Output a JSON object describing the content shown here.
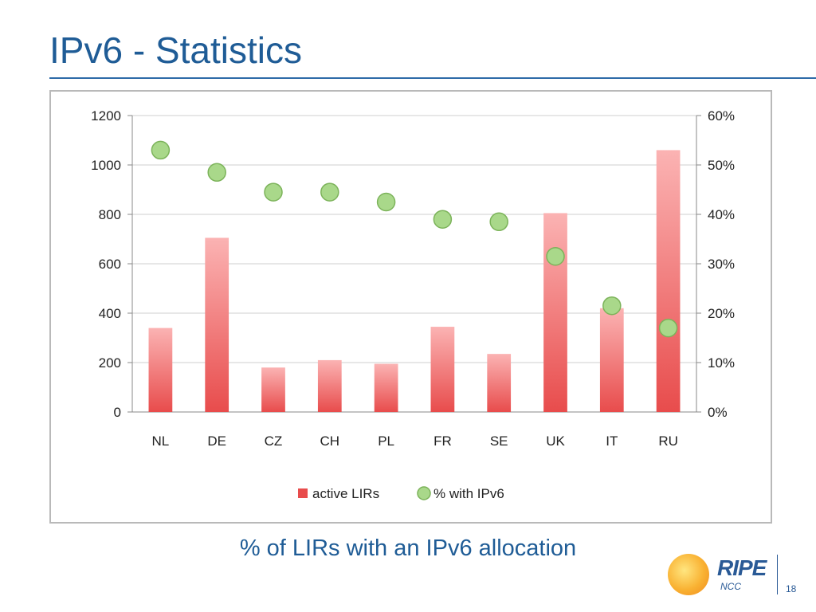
{
  "slide": {
    "title": "IPv6 - Statistics",
    "caption": "% of LIRs with an IPv6 allocation",
    "page_number": "18",
    "logo": {
      "name": "RIPE",
      "sub": "NCC"
    }
  },
  "colors": {
    "title": "#1f5c96",
    "bar": "#e84c4c",
    "bar_light": "#fbb3b3",
    "point": "#a9d88a",
    "point_stroke": "#7cb35a"
  },
  "chart_data": {
    "type": "bar",
    "categories": [
      "NL",
      "DE",
      "CZ",
      "CH",
      "PL",
      "FR",
      "SE",
      "UK",
      "IT",
      "RU"
    ],
    "series": [
      {
        "name": "active LIRs",
        "type": "bar",
        "axis": "left",
        "values": [
          340,
          705,
          180,
          210,
          195,
          345,
          235,
          805,
          420,
          1060
        ]
      },
      {
        "name": "% with IPv6",
        "type": "scatter",
        "axis": "right",
        "values": [
          53,
          48.5,
          44.5,
          44.5,
          42.5,
          39,
          38.5,
          31.5,
          21.5,
          17
        ]
      }
    ],
    "y_left": {
      "min": 0,
      "max": 1200,
      "ticks": [
        "0",
        "200",
        "400",
        "600",
        "800",
        "1000",
        "1200"
      ]
    },
    "y_right": {
      "min": 0,
      "max": 60,
      "ticks": [
        "0%",
        "10%",
        "20%",
        "30%",
        "40%",
        "50%",
        "60%"
      ]
    },
    "grid": true,
    "legend": "bottom"
  }
}
